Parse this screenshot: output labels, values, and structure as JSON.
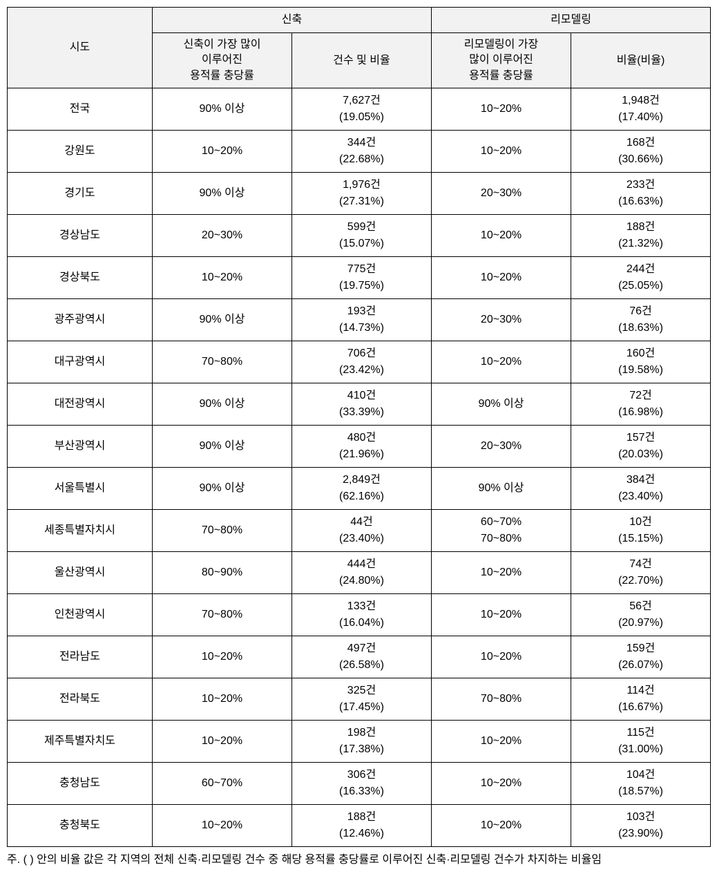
{
  "headers": {
    "sido": "시도",
    "group1": "신축",
    "group2": "리모델링",
    "g1c1_l1": "신축이 가장 많이",
    "g1c1_l2": "이루어진",
    "g1c1_l3": "용적률 충당률",
    "g1c2": "건수 및 비율",
    "g2c1_l1": "리모델링이 가장",
    "g2c1_l2": "많이 이루어진",
    "g2c1_l3": "용적률 충당률",
    "g2c2": "비율(비율)"
  },
  "rows": [
    {
      "sido": "전국",
      "r1": "90% 이상",
      "c1top": "7,627건",
      "c1bot": "(19.05%)",
      "r2": "10~20%",
      "c2top": "1,948건",
      "c2bot": "(17.40%)"
    },
    {
      "sido": "강원도",
      "r1": "10~20%",
      "c1top": "344건",
      "c1bot": "(22.68%)",
      "r2": "10~20%",
      "c2top": "168건",
      "c2bot": "(30.66%)"
    },
    {
      "sido": "경기도",
      "r1": "90% 이상",
      "c1top": "1,976건",
      "c1bot": "(27.31%)",
      "r2": "20~30%",
      "c2top": "233건",
      "c2bot": "(16.63%)"
    },
    {
      "sido": "경상남도",
      "r1": "20~30%",
      "c1top": "599건",
      "c1bot": "(15.07%)",
      "r2": "10~20%",
      "c2top": "188건",
      "c2bot": "(21.32%)"
    },
    {
      "sido": "경상북도",
      "r1": "10~20%",
      "c1top": "775건",
      "c1bot": "(19.75%)",
      "r2": "10~20%",
      "c2top": "244건",
      "c2bot": "(25.05%)"
    },
    {
      "sido": "광주광역시",
      "r1": "90% 이상",
      "c1top": "193건",
      "c1bot": "(14.73%)",
      "r2": "20~30%",
      "c2top": "76건",
      "c2bot": "(18.63%)"
    },
    {
      "sido": "대구광역시",
      "r1": "70~80%",
      "c1top": "706건",
      "c1bot": "(23.42%)",
      "r2": "10~20%",
      "c2top": "160건",
      "c2bot": "(19.58%)"
    },
    {
      "sido": "대전광역시",
      "r1": "90% 이상",
      "c1top": "410건",
      "c1bot": "(33.39%)",
      "r2": "90% 이상",
      "c2top": "72건",
      "c2bot": "(16.98%)"
    },
    {
      "sido": "부산광역시",
      "r1": "90% 이상",
      "c1top": "480건",
      "c1bot": "(21.96%)",
      "r2": "20~30%",
      "c2top": "157건",
      "c2bot": "(20.03%)"
    },
    {
      "sido": "서울특별시",
      "r1": "90% 이상",
      "c1top": "2,849건",
      "c1bot": "(62.16%)",
      "r2": "90% 이상",
      "c2top": "384건",
      "c2bot": "(23.40%)"
    },
    {
      "sido": "세종특별자치시",
      "r1": "70~80%",
      "c1top": "44건",
      "c1bot": "(23.40%)",
      "r2_l1": "60~70%",
      "r2_l2": "70~80%",
      "c2top": "10건",
      "c2bot": "(15.15%)"
    },
    {
      "sido": "울산광역시",
      "r1": "80~90%",
      "c1top": "444건",
      "c1bot": "(24.80%)",
      "r2": "10~20%",
      "c2top": "74건",
      "c2bot": "(22.70%)"
    },
    {
      "sido": "인천광역시",
      "r1": "70~80%",
      "c1top": "133건",
      "c1bot": "(16.04%)",
      "r2": "10~20%",
      "c2top": "56건",
      "c2bot": "(20.97%)"
    },
    {
      "sido": "전라남도",
      "r1": "10~20%",
      "c1top": "497건",
      "c1bot": "(26.58%)",
      "r2": "10~20%",
      "c2top": "159건",
      "c2bot": "(26.07%)"
    },
    {
      "sido": "전라북도",
      "r1": "10~20%",
      "c1top": "325건",
      "c1bot": "(17.45%)",
      "r2": "70~80%",
      "c2top": "114건",
      "c2bot": "(16.67%)"
    },
    {
      "sido": "제주특별자치도",
      "r1": "10~20%",
      "c1top": "198건",
      "c1bot": "(17.38%)",
      "r2": "10~20%",
      "c2top": "115건",
      "c2bot": "(31.00%)"
    },
    {
      "sido": "충청남도",
      "r1": "60~70%",
      "c1top": "306건",
      "c1bot": "(16.33%)",
      "r2": "10~20%",
      "c2top": "104건",
      "c2bot": "(18.57%)"
    },
    {
      "sido": "충청북도",
      "r1": "10~20%",
      "c1top": "188건",
      "c1bot": "(12.46%)",
      "r2": "10~20%",
      "c2top": "103건",
      "c2bot": "(23.90%)"
    }
  ],
  "footnote": "주. ( ) 안의 비율 값은 각 지역의 전체 신축·리모델링 건수 중 해당 용적률 충당률로 이루어진 신축·리모델링 건수가 차지하는 비율임"
}
